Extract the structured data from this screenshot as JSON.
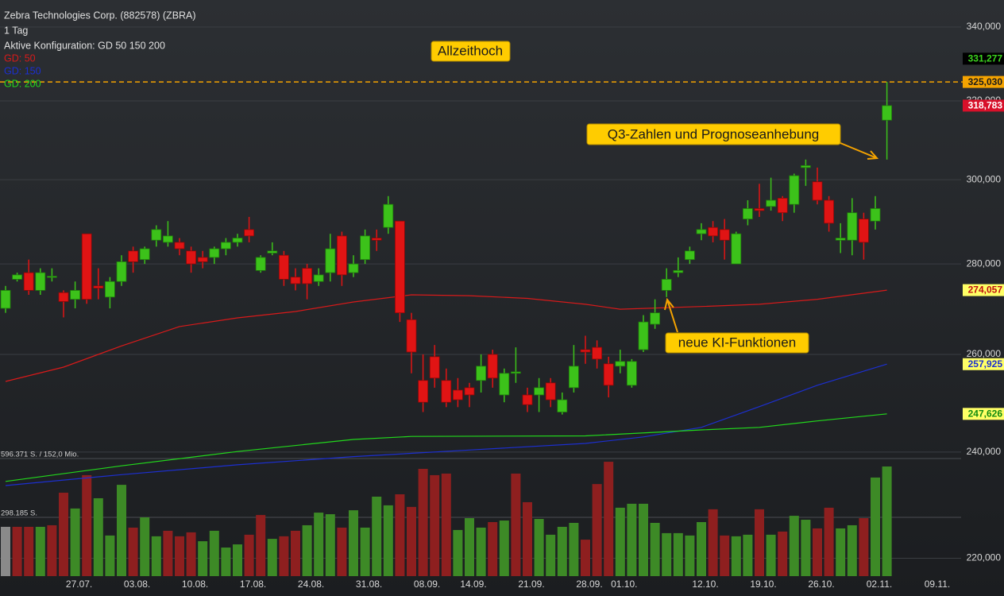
{
  "chart_data": {
    "type": "candlestick",
    "title": "Zebra Technologies Corp. (882578) (ZBRA)",
    "subtitle": "1 Tag",
    "configuration": "Aktive Konfiguration: GD 50 150 200",
    "log_y": true,
    "grid": true,
    "up_color": "#3cc21a",
    "down_color": "#e01414",
    "ylim": [
      216.8,
      347.6
    ],
    "yticks": [
      {
        "value": 220,
        "label": "220,000"
      },
      {
        "value": 240,
        "label": "240,000"
      },
      {
        "value": 260,
        "label": "260,000"
      },
      {
        "value": 280,
        "label": "280,000"
      },
      {
        "value": 300,
        "label": "300,000"
      },
      {
        "value": 320,
        "label": "320,000"
      },
      {
        "value": 340,
        "label": "340,000"
      }
    ],
    "categories": [
      null,
      null,
      null,
      null,
      null,
      null,
      "27.07.",
      null,
      null,
      null,
      null,
      "03.08.",
      null,
      null,
      null,
      null,
      "10.08.",
      null,
      null,
      null,
      null,
      "17.08.",
      null,
      null,
      null,
      null,
      "24.08.",
      null,
      null,
      null,
      null,
      "31.08.",
      null,
      null,
      null,
      null,
      "08.09.",
      null,
      null,
      null,
      "14.09.",
      null,
      null,
      null,
      null,
      "21.09.",
      null,
      null,
      null,
      null,
      "28.09.",
      null,
      null,
      "01.10.",
      null,
      null,
      null,
      null,
      null,
      null,
      "12.10.",
      null,
      null,
      null,
      null,
      "19.10.",
      null,
      null,
      null,
      null,
      "26.10.",
      null,
      null,
      null,
      null,
      "02.11.",
      null,
      null,
      null,
      null,
      "09.11."
    ],
    "open": [
      270,
      276.5,
      278,
      274,
      277,
      273.5,
      272,
      287,
      275,
      272.5,
      276,
      283,
      281,
      285.5,
      285,
      285,
      283,
      281.5,
      281.5,
      283.5,
      285,
      288,
      278.5,
      282.5,
      282,
      277,
      279,
      276,
      278,
      286.5,
      278,
      281,
      286,
      288.5,
      290,
      267.5,
      254.5,
      259.5,
      254.5,
      252.5,
      253,
      254.5,
      260,
      251.5,
      256,
      251.5,
      251.5,
      254,
      248,
      253,
      261,
      261.5,
      258,
      257.5,
      253.5,
      261,
      266.5,
      274,
      278,
      281,
      287,
      288.5,
      288,
      280,
      290.5,
      293,
      293.5,
      295.5,
      294,
      303,
      299.5,
      295,
      285.5,
      285.5,
      290.5,
      290,
      315,
      null,
      null,
      null,
      null
    ],
    "high": [
      275,
      278,
      281,
      279,
      279,
      274,
      276,
      287,
      279,
      277,
      282,
      284,
      284,
      289,
      290,
      286,
      284,
      283,
      284,
      286,
      287,
      291,
      282,
      285,
      283,
      279,
      280,
      279,
      287,
      287.5,
      282,
      288,
      288,
      296,
      290,
      269,
      260,
      262,
      257,
      255,
      254,
      260,
      261,
      257,
      261.5,
      253,
      255,
      255,
      252,
      262,
      264,
      263,
      259.5,
      261,
      259,
      268.5,
      272,
      279,
      281.5,
      284,
      289.5,
      290,
      290.5,
      287.5,
      295,
      299,
      300.5,
      296,
      301.5,
      305,
      303,
      296,
      289.5,
      295.5,
      292,
      296,
      325.03,
      null,
      null,
      null,
      null
    ],
    "low": [
      269,
      276,
      273,
      273,
      276,
      268,
      270,
      271,
      272,
      270,
      275,
      278,
      280,
      284,
      284,
      282,
      278,
      279,
      280,
      282,
      284,
      285,
      278,
      282,
      275,
      274,
      272,
      275,
      276,
      275,
      277,
      280,
      283,
      287,
      267,
      256,
      248,
      253,
      249,
      249,
      249,
      252,
      253,
      250,
      254,
      248,
      248,
      249,
      247.5,
      252,
      258,
      257,
      251,
      256,
      253,
      260.5,
      265.5,
      272.5,
      277,
      280,
      285.5,
      285,
      281,
      280,
      289,
      291,
      292.5,
      290,
      292,
      298.5,
      294,
      287.5,
      282.5,
      282,
      281,
      288,
      305,
      null,
      null,
      null,
      null
    ],
    "close": [
      274,
      277.5,
      274,
      278,
      277.2,
      271.5,
      274,
      272,
      274.5,
      276,
      280.5,
      280.5,
      283.5,
      288,
      286.5,
      283.5,
      280,
      280.5,
      283.5,
      285,
      286,
      286.5,
      281.5,
      283,
      276.5,
      275.5,
      275.5,
      277.5,
      283.5,
      277.5,
      280,
      286.5,
      285.5,
      294,
      269,
      260.5,
      250,
      255,
      250,
      250.5,
      251.5,
      257.5,
      255,
      256,
      256.3,
      249.5,
      253,
      250.5,
      250.5,
      257.5,
      260.5,
      259,
      253.5,
      258.5,
      258.5,
      267,
      269,
      276.5,
      278.5,
      283,
      288,
      286.5,
      285.5,
      287,
      293,
      292.5,
      295,
      292,
      301,
      303.5,
      295,
      289.5,
      286,
      292,
      285,
      293,
      318.783,
      null,
      null,
      null,
      null
    ],
    "series": [
      {
        "name": "GD: 50",
        "color": "#d81a1a",
        "x": [
          0,
          5,
          10,
          15,
          20,
          25,
          30,
          35,
          40,
          45,
          50,
          53,
          60,
          65,
          70,
          76
        ],
        "values": [
          254.3,
          257.3,
          261.8,
          266.0,
          267.9,
          269.3,
          271.4,
          273.0,
          272.8,
          272.2,
          270.9,
          269.8,
          270.4,
          270.9,
          272.0,
          274.057
        ]
      },
      {
        "name": "GD: 150",
        "color": "#1c2fd0",
        "x": [
          0,
          10,
          20,
          30,
          40,
          50,
          55,
          60,
          65,
          70,
          76
        ],
        "values": [
          233.5,
          235.6,
          237.5,
          239.1,
          240.4,
          241.7,
          243.0,
          244.9,
          249.1,
          253.5,
          257.925
        ]
      },
      {
        "name": "GD: 200",
        "color": "#22d81c",
        "x": [
          0,
          10,
          20,
          30,
          35,
          50,
          60,
          65,
          70,
          76
        ],
        "values": [
          234.3,
          237.3,
          240.1,
          242.5,
          243.1,
          243.2,
          244.4,
          244.9,
          246.2,
          247.626
        ]
      }
    ],
    "volume": {
      "ylim": [
        0,
        596371
      ],
      "yticks": [
        {
          "value": 298185,
          "label": "298.185 S."
        },
        {
          "value": 596371,
          "label": "596.371 S. / 152,0 Mio."
        }
      ],
      "values": [
        250000,
        250000,
        250000,
        250000,
        258000,
        423000,
        343000,
        512000,
        395000,
        206000,
        463000,
        246000,
        298000,
        202000,
        230000,
        202000,
        222000,
        177000,
        230000,
        145000,
        161000,
        210000,
        310000,
        189000,
        202000,
        230000,
        258000,
        322000,
        314000,
        246000,
        334000,
        246000,
        403000,
        359000,
        415000,
        351000,
        544000,
        512000,
        520000,
        234000,
        294000,
        246000,
        274000,
        282000,
        520000,
        375000,
        290000,
        210000,
        250000,
        270000,
        185000,
        467000,
        580000,
        347000,
        367000,
        367000,
        270000,
        218000,
        218000,
        206000,
        274000,
        339000,
        206000,
        202000,
        210000,
        339000,
        210000,
        226000,
        306000,
        286000,
        242000,
        347000,
        242000,
        258000,
        294000,
        500000,
        556000,
        null,
        null,
        null,
        null
      ],
      "colors": [
        "#8a8a8a",
        "#8e1f1f",
        "#8e1f1f",
        "#3d8a26",
        "#8e1f1f",
        "#8e1f1f",
        "#3d8a26",
        "#8e1f1f",
        "#3d8a26",
        "#3d8a26",
        "#3d8a26",
        "#8e1f1f",
        "#3d8a26",
        "#3d8a26",
        "#8e1f1f",
        "#8e1f1f",
        "#8e1f1f",
        "#3d8a26",
        "#3d8a26",
        "#3d8a26",
        "#3d8a26",
        "#8e1f1f",
        "#8e1f1f",
        "#3d8a26",
        "#8e1f1f",
        "#8e1f1f",
        "#3d8a26",
        "#3d8a26",
        "#3d8a26",
        "#8e1f1f",
        "#3d8a26",
        "#3d8a26",
        "#3d8a26",
        "#3d8a26",
        "#8e1f1f",
        "#8e1f1f",
        "#8e1f1f",
        "#8e1f1f",
        "#8e1f1f",
        "#3d8a26",
        "#3d8a26",
        "#3d8a26",
        "#8e1f1f",
        "#3d8a26",
        "#8e1f1f",
        "#8e1f1f",
        "#3d8a26",
        "#3d8a26",
        "#3d8a26",
        "#3d8a26",
        "#8e1f1f",
        "#8e1f1f",
        "#8e1f1f",
        "#3d8a26",
        "#3d8a26",
        "#3d8a26",
        "#3d8a26",
        "#3d8a26",
        "#3d8a26",
        "#3d8a26",
        "#3d8a26",
        "#8e1f1f",
        "#8e1f1f",
        "#3d8a26",
        "#3d8a26",
        "#8e1f1f",
        "#3d8a26",
        "#8e1f1f",
        "#3d8a26",
        "#3d8a26",
        "#8e1f1f",
        "#8e1f1f",
        "#3d8a26",
        "#3d8a26",
        "#8e1f1f",
        "#3d8a26",
        "#3d8a26",
        null,
        null,
        null,
        null
      ]
    },
    "reference_line": 325.03,
    "price_tags": [
      {
        "value": 331.277,
        "label": "331,277",
        "color": "#000000",
        "text_color": "#3cd61e"
      },
      {
        "value": 325.03,
        "label": "325,030",
        "color": "#f5a300",
        "text_color": "#1a1a1a"
      },
      {
        "value": 318.783,
        "label": "318,783",
        "color": "#d8102a",
        "text_color": "#ffffff"
      },
      {
        "value": 274.057,
        "label": "274,057",
        "color": "#ffff66",
        "text_color": "#c01010"
      },
      {
        "value": 257.925,
        "label": "257,925",
        "color": "#ffff66",
        "text_color": "#1c2fd0"
      },
      {
        "value": 247.626,
        "label": "247,626",
        "color": "#ffff66",
        "text_color": "#128a10"
      }
    ],
    "annotations": [
      "Allzeithoch",
      "Q3-Zahlen und Prognoseanhebung",
      "neue KI-Funktionen"
    ]
  }
}
